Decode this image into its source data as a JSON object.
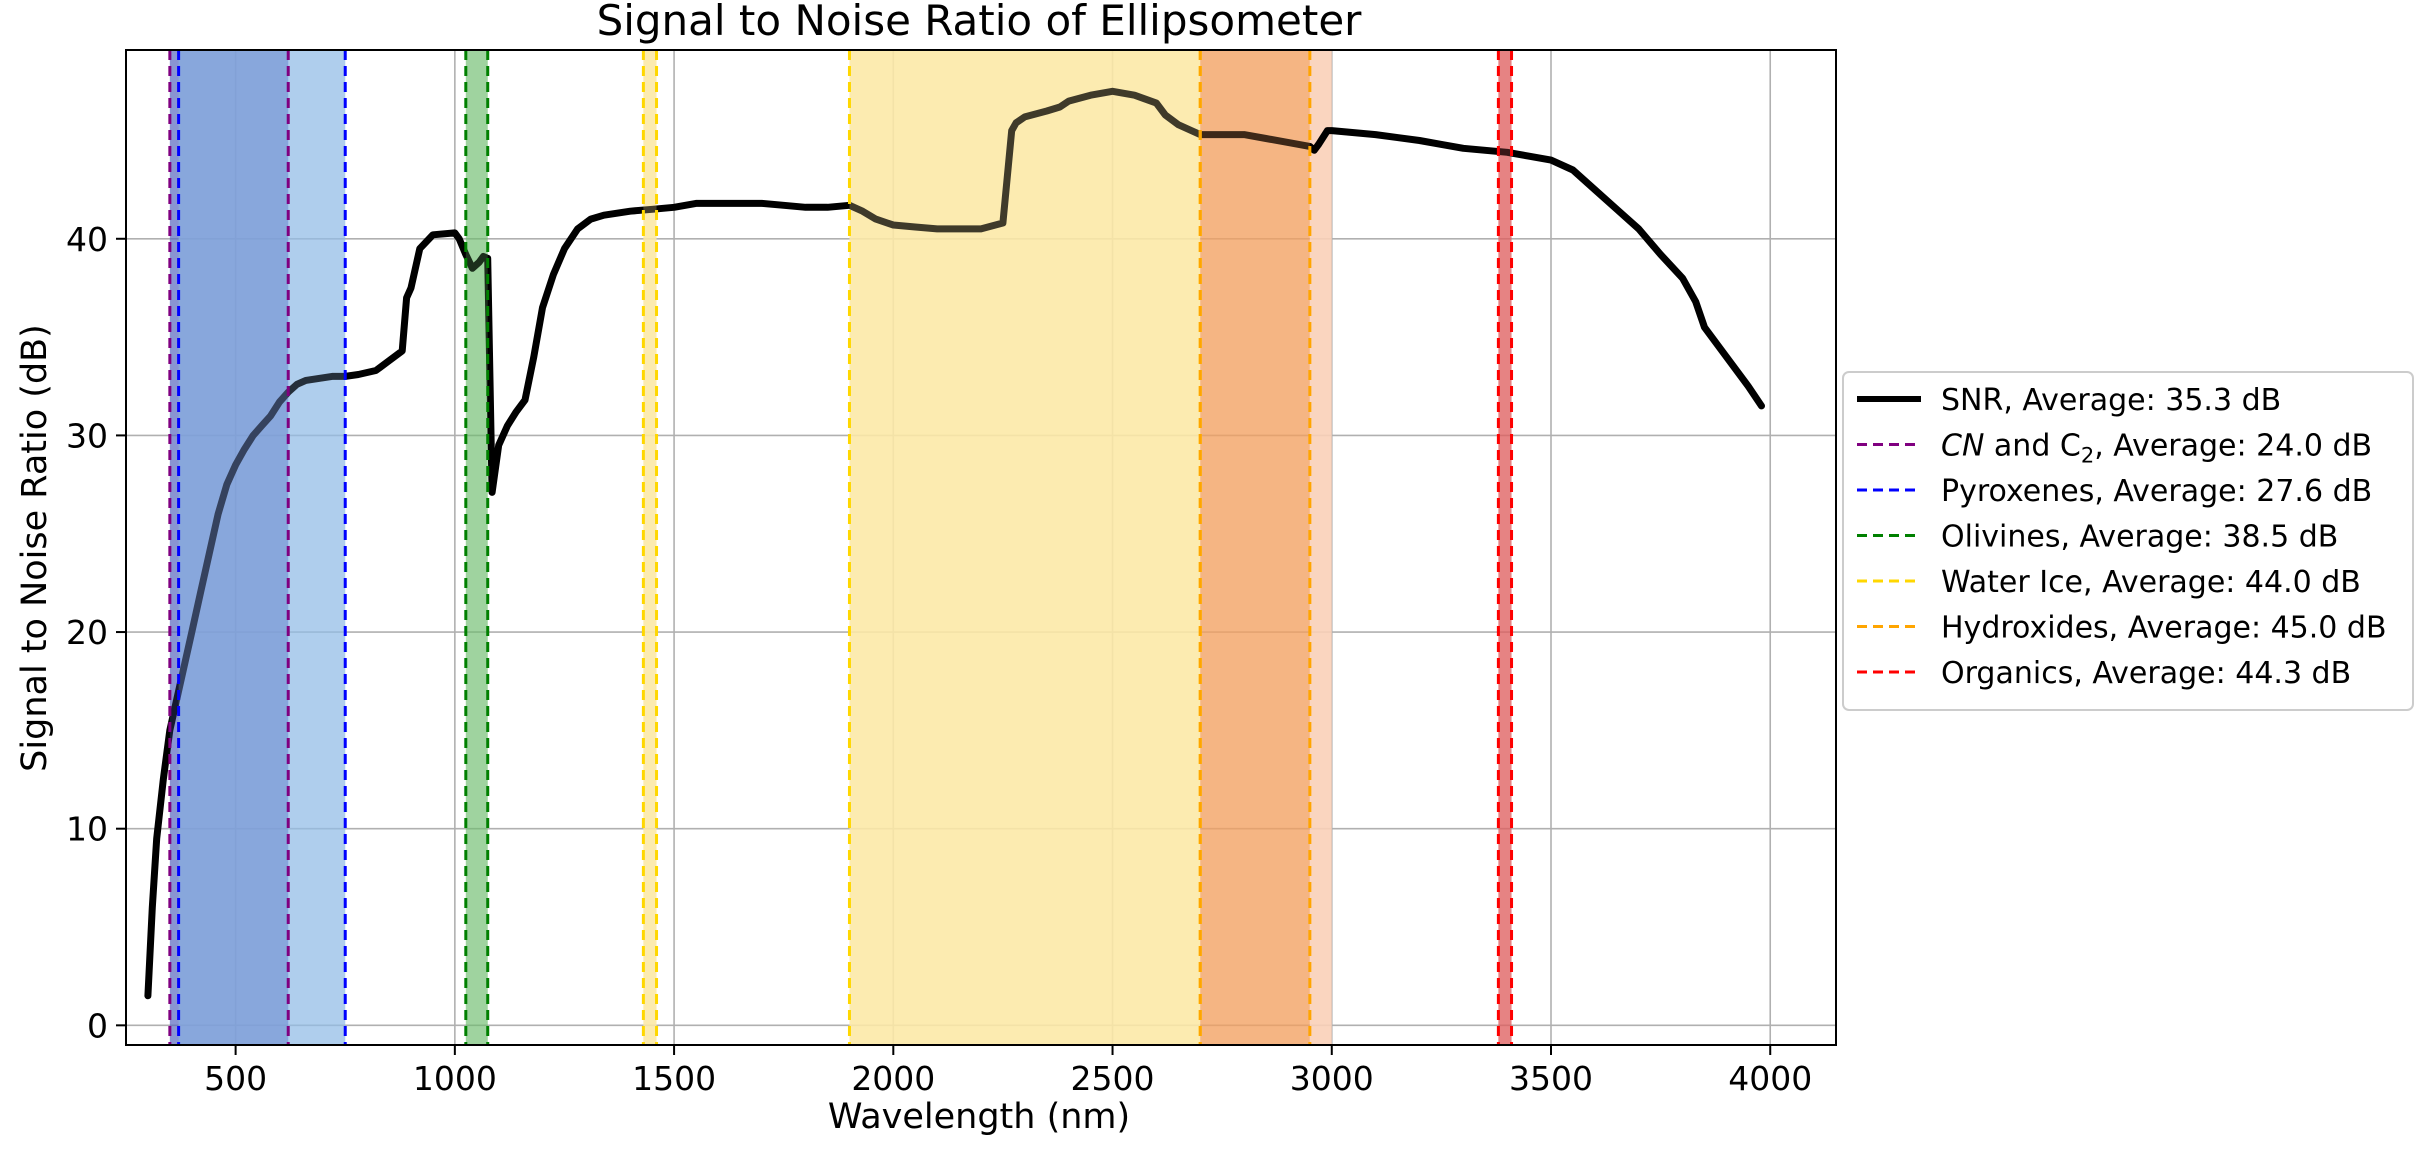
{
  "chart_data": {
    "type": "line",
    "title": "Signal to Noise Ratio of Ellipsometer",
    "xlabel": "Wavelength (nm)",
    "ylabel": "Signal to Noise Ratio (dB)",
    "xlim": [
      250,
      4150
    ],
    "ylim": [
      -1,
      49.6
    ],
    "xticks": [
      500,
      1000,
      1500,
      2000,
      2500,
      3000,
      3500,
      4000
    ],
    "yticks": [
      0,
      10,
      20,
      30,
      40
    ],
    "grid": true,
    "legend_position": "right",
    "series": [
      {
        "name": "SNR, Average: 35.3 dB",
        "color": "#000000",
        "x": [
          300,
          310,
          320,
          335,
          350,
          365,
          380,
          400,
          420,
          440,
          460,
          480,
          500,
          520,
          540,
          560,
          580,
          600,
          620,
          640,
          660,
          690,
          720,
          750,
          780,
          820,
          850,
          880,
          890,
          900,
          920,
          950,
          1000,
          1010,
          1025,
          1040,
          1055,
          1065,
          1075,
          1085,
          1100,
          1120,
          1140,
          1160,
          1180,
          1200,
          1225,
          1250,
          1280,
          1310,
          1340,
          1370,
          1400,
          1450,
          1500,
          1550,
          1600,
          1650,
          1700,
          1750,
          1800,
          1850,
          1900,
          1930,
          1960,
          2000,
          2050,
          2100,
          2150,
          2200,
          2250,
          2270,
          2280,
          2300,
          2350,
          2380,
          2400,
          2450,
          2500,
          2550,
          2600,
          2620,
          2650,
          2700,
          2750,
          2800,
          2850,
          2900,
          2950,
          2960,
          2970,
          2990,
          3000,
          3100,
          3200,
          3250,
          3300,
          3350,
          3400,
          3450,
          3500,
          3550,
          3600,
          3650,
          3700,
          3750,
          3800,
          3830,
          3850,
          3900,
          3950,
          3980
        ],
        "values": [
          1.5,
          6,
          9.5,
          12.5,
          15,
          16.5,
          18,
          20,
          22,
          24,
          26,
          27.5,
          28.5,
          29.3,
          30,
          30.5,
          31,
          31.7,
          32.2,
          32.6,
          32.8,
          32.9,
          33,
          33,
          33.1,
          33.3,
          33.8,
          34.3,
          37,
          37.5,
          39.5,
          40.2,
          40.3,
          40,
          39.2,
          38.5,
          38.8,
          39.1,
          39,
          27.1,
          29.5,
          30.5,
          31.2,
          31.8,
          34,
          36.5,
          38.2,
          39.5,
          40.5,
          41,
          41.2,
          41.3,
          41.4,
          41.5,
          41.6,
          41.8,
          41.8,
          41.8,
          41.8,
          41.7,
          41.6,
          41.6,
          41.7,
          41.4,
          41,
          40.7,
          40.6,
          40.5,
          40.5,
          40.5,
          40.8,
          45.5,
          45.9,
          46.2,
          46.5,
          46.7,
          47,
          47.3,
          47.5,
          47.3,
          46.9,
          46.3,
          45.8,
          45.3,
          45.3,
          45.3,
          45.1,
          44.9,
          44.7,
          44.5,
          44.8,
          45.5,
          45.5,
          45.3,
          45,
          44.8,
          44.6,
          44.5,
          44.4,
          44.2,
          44,
          43.5,
          42.5,
          41.5,
          40.5,
          39.2,
          38,
          36.8,
          35.5,
          34,
          32.5,
          31.5
        ]
      }
    ],
    "bands": [
      {
        "name": "CN and C2, Average: 24.0 dB",
        "label_prefix": "CN",
        "label_mid": " and C",
        "label_sub": "2",
        "label_suffix": ", Average: 24.0 dB",
        "color": "#800080",
        "fill": "#5869c0",
        "fill_opacity": 0.6,
        "x_start": 350,
        "x_end": 620
      },
      {
        "name": "Pyroxenes, Average: 27.6 dB",
        "color": "#0000ff",
        "fill": "#92bde6",
        "fill_opacity": 0.65,
        "x_start": 370,
        "x_end": 750
      },
      {
        "name": "Olivines, Average: 38.5 dB",
        "color": "#008000",
        "fill": "#6ebd6e",
        "fill_opacity": 0.55,
        "x_start": 1025,
        "x_end": 1075
      },
      {
        "name": "Water Ice, Average: 44.0 dB",
        "color": "#ffd700",
        "fill": "#fde9a6",
        "fill_opacity": 0.85,
        "x_start": 1430,
        "x_end": 1460,
        "x_start2": 1900,
        "x_end2": 2700
      },
      {
        "name": "Hydroxides, Average: 45.0 dB",
        "color": "#ffa500",
        "fill": "#f2a060",
        "fill_opacity": 0.7,
        "x_start": 2700,
        "x_end": 2950
      },
      {
        "name": "Organics, Average: 44.3 dB",
        "color": "#ff0000",
        "fill": "#e06060",
        "fill_opacity": 0.7,
        "x_start": 3380,
        "x_end": 3410
      }
    ],
    "extra_fills": [
      {
        "color": "#fad0b8",
        "fill_opacity": 0.9,
        "x_start": 2950,
        "x_end": 3000
      }
    ],
    "legend": [
      {
        "label": "SNR, Average: 35.3 dB",
        "color": "#000000",
        "style": "solid"
      },
      {
        "label": "CN and C2, Average: 24.0 dB",
        "color": "#800080",
        "style": "dashed"
      },
      {
        "label": "Pyroxenes, Average: 27.6 dB",
        "color": "#0000ff",
        "style": "dashed"
      },
      {
        "label": "Olivines, Average: 38.5 dB",
        "color": "#008000",
        "style": "dashed"
      },
      {
        "label": "Water Ice, Average: 44.0 dB",
        "color": "#ffd700",
        "style": "dashed"
      },
      {
        "label": "Hydroxides, Average: 45.0 dB",
        "color": "#ffa500",
        "style": "dashed"
      },
      {
        "label": "Organics, Average: 44.3 dB",
        "color": "#ff0000",
        "style": "dashed"
      }
    ]
  }
}
